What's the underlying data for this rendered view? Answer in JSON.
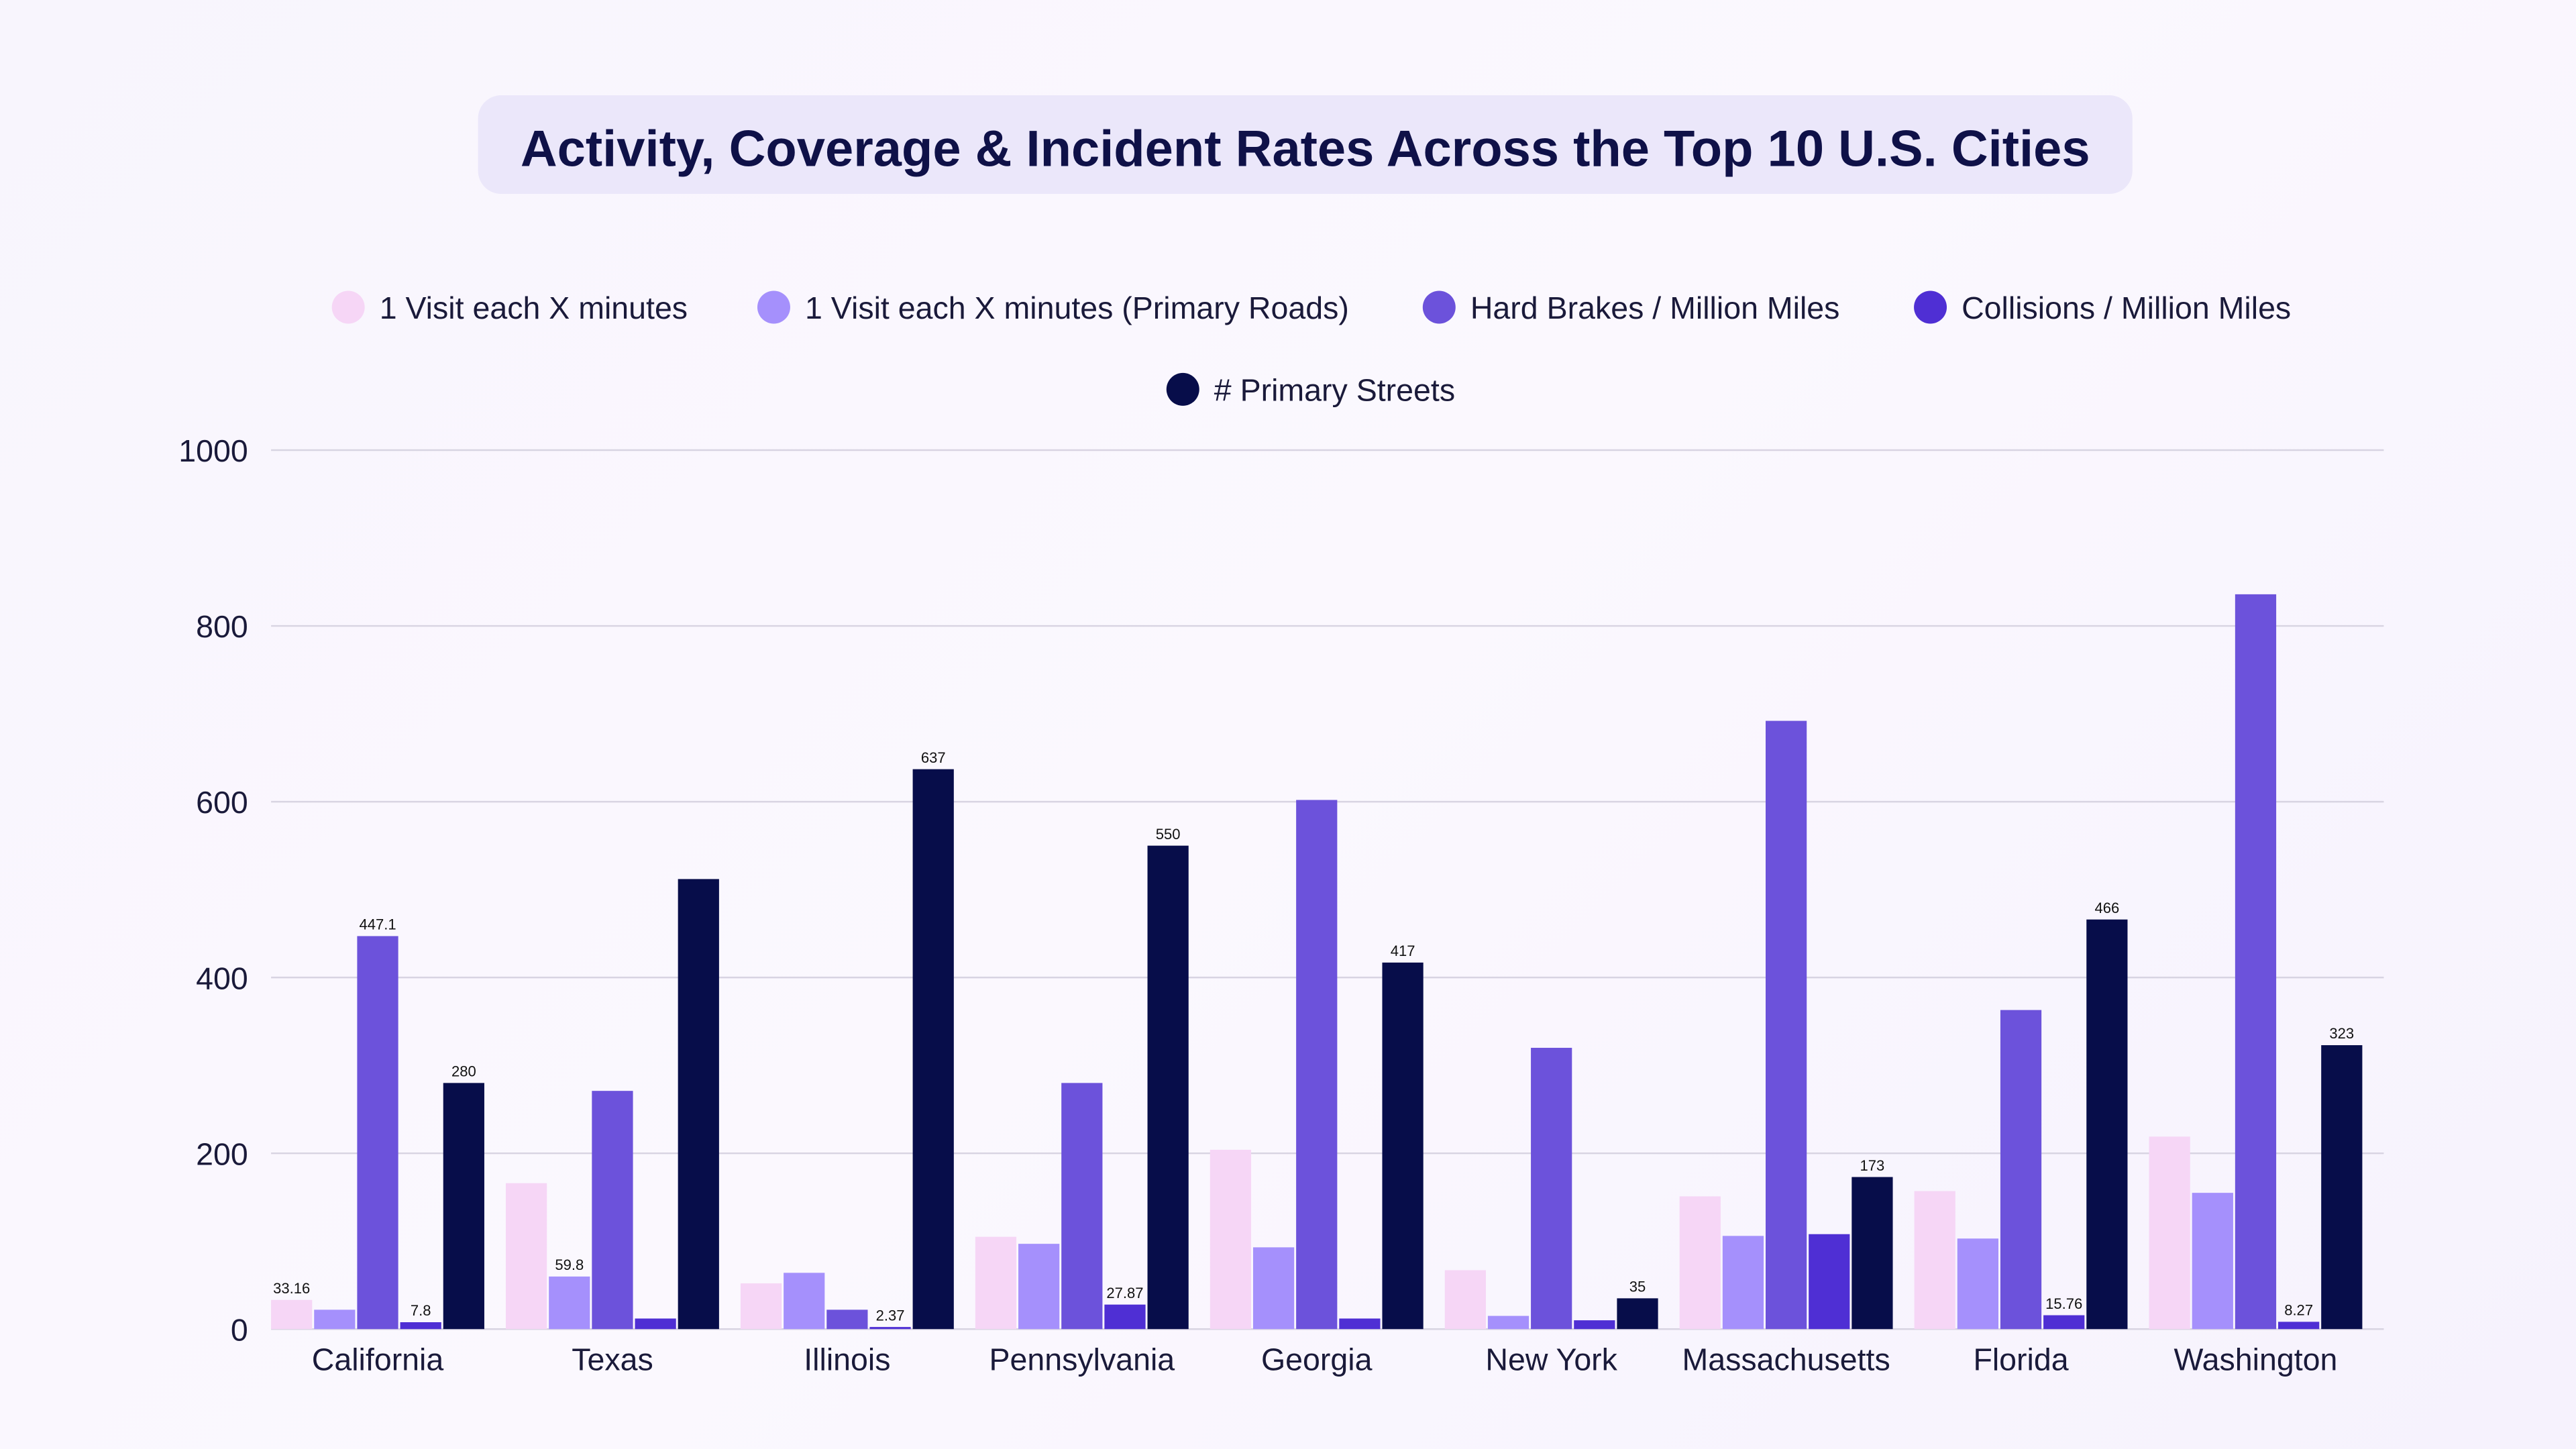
{
  "chart_data": {
    "type": "bar",
    "title": "Activity, Coverage & Incident Rates Across the Top 10 U.S. Cities",
    "xlabel": "",
    "ylabel": "",
    "ylim": [
      0,
      1000
    ],
    "yticks": [
      0,
      200,
      400,
      600,
      800,
      1000
    ],
    "grid": true,
    "legend_position": "top",
    "categories": [
      "California",
      "Texas",
      "Illinois",
      "Pennsylvania",
      "Georgia",
      "New York",
      "Massachusetts",
      "Florida",
      "Washington"
    ],
    "series": [
      {
        "name": "1 Visit each X minutes",
        "color": "#f6d6f6",
        "values": [
          33.16,
          166,
          52,
          105,
          204,
          67,
          151,
          157,
          219
        ],
        "data_labels": [
          "33.16",
          null,
          null,
          null,
          null,
          null,
          null,
          null,
          null
        ]
      },
      {
        "name": "1 Visit each X minutes (Primary Roads)",
        "color": "#a590fc",
        "values": [
          22,
          59.8,
          64,
          97,
          93,
          15,
          106,
          103,
          155
        ],
        "data_labels": [
          null,
          "59.8",
          null,
          null,
          null,
          null,
          null,
          null,
          null
        ]
      },
      {
        "name": "Hard Brakes / Million Miles",
        "color": "#6c52db",
        "values": [
          447.1,
          271,
          22,
          280,
          602,
          320,
          692,
          363,
          836
        ],
        "data_labels": [
          "447.1",
          null,
          null,
          null,
          null,
          null,
          null,
          null,
          null
        ]
      },
      {
        "name": "Collisions / Million Miles",
        "color": "#4f2fd4",
        "values": [
          7.8,
          12,
          2.37,
          27.87,
          12,
          10,
          108,
          15.76,
          8.27
        ],
        "data_labels": [
          "7.8",
          null,
          "2.37",
          "27.87",
          null,
          null,
          null,
          "15.76",
          "8.27"
        ]
      },
      {
        "name": "# Primary Streets",
        "color": "#070d4a",
        "values": [
          280,
          512,
          637,
          550,
          417,
          35,
          173,
          466,
          323
        ],
        "data_labels": [
          "280",
          null,
          "637",
          "550",
          "417",
          "35",
          "173",
          "466",
          "323"
        ]
      }
    ]
  },
  "colors": {
    "title_box": "#ebe7fa",
    "title_text": "#0f1148",
    "axis": "#9a96a8"
  }
}
